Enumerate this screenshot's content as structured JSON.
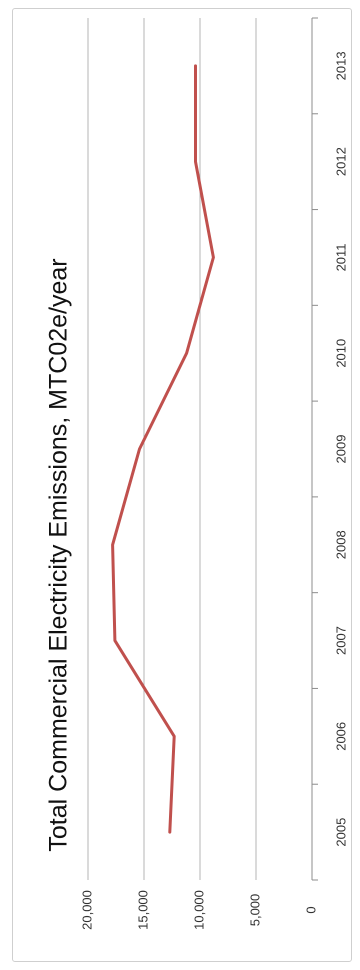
{
  "chart_data": {
    "type": "line",
    "title": "Total Commercial Electricity Emissions,  MTC02e/year",
    "xlabel": "",
    "ylabel": "",
    "x": [
      "2005",
      "2006",
      "2007",
      "2008",
      "2009",
      "2010",
      "2011",
      "2012",
      "2013"
    ],
    "y_ticks": [
      "0",
      "5,000",
      "10,000",
      "15,000",
      "20,000"
    ],
    "ylim": [
      0,
      20000
    ],
    "series": [
      {
        "values": [
          12700,
          12300,
          17600,
          17800,
          15400,
          11200,
          8800,
          10400,
          10400
        ],
        "color": "#c0504d"
      }
    ],
    "grid": true,
    "legend": "none",
    "orientation": "rotated 90° clockwise"
  }
}
